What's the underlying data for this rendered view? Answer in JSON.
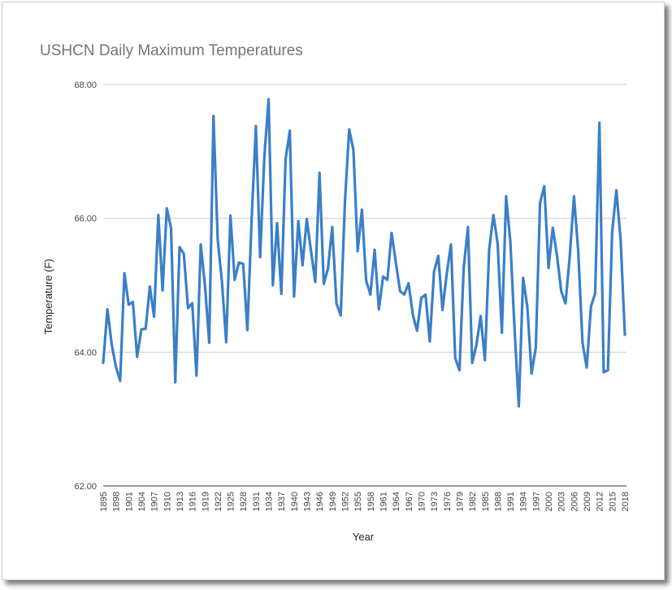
{
  "chart_data": {
    "type": "line",
    "title": "USHCN Daily Maximum Temperatures",
    "xlabel": "Year",
    "ylabel": "Temperature (F)",
    "ylim": [
      62,
      68
    ],
    "y_ticks": [
      "62.00",
      "64.00",
      "66.00",
      "68.00"
    ],
    "grid": true,
    "legend": "none",
    "x_ticks": [
      "1895",
      "1898",
      "1901",
      "1904",
      "1907",
      "1910",
      "1913",
      "1916",
      "1919",
      "1922",
      "1925",
      "1928",
      "1931",
      "1934",
      "1937",
      "1940",
      "1943",
      "1946",
      "1949",
      "1952",
      "1955",
      "1958",
      "1961",
      "1964",
      "1967",
      "1970",
      "1973",
      "1976",
      "1979",
      "1982",
      "1985",
      "1988",
      "1991",
      "1994",
      "1997",
      "2000",
      "2003",
      "2006",
      "2009",
      "2012",
      "2015",
      "2018"
    ],
    "line_color": "#3a7fc8",
    "series": [
      {
        "x": [
          1895,
          1896,
          1897,
          1898,
          1899,
          1900,
          1901,
          1902,
          1903,
          1904,
          1905,
          1906,
          1907,
          1908,
          1909,
          1910,
          1911,
          1912,
          1913,
          1914,
          1915,
          1916,
          1917,
          1918,
          1919,
          1920,
          1921,
          1922,
          1923,
          1924,
          1925,
          1926,
          1927,
          1928,
          1929,
          1930,
          1931,
          1932,
          1933,
          1934,
          1935,
          1936,
          1937,
          1938,
          1939,
          1940,
          1941,
          1942,
          1943,
          1944,
          1945,
          1946,
          1947,
          1948,
          1949,
          1950,
          1951,
          1952,
          1953,
          1954,
          1955,
          1956,
          1957,
          1958,
          1959,
          1960,
          1961,
          1962,
          1963,
          1964,
          1965,
          1966,
          1967,
          1968,
          1969,
          1970,
          1971,
          1972,
          1973,
          1974,
          1975,
          1976,
          1977,
          1978,
          1979,
          1980,
          1981,
          1982,
          1983,
          1984,
          1985,
          1986,
          1987,
          1988,
          1989,
          1990,
          1991,
          1992,
          1993,
          1994,
          1995,
          1996,
          1997,
          1998,
          1999,
          2000,
          2001,
          2002,
          2003,
          2004,
          2005,
          2006,
          2007,
          2008,
          2009,
          2010,
          2011,
          2012,
          2013,
          2014,
          2015,
          2016,
          2017,
          2018
        ],
        "values": [
          63.84,
          64.64,
          64.12,
          63.78,
          63.57,
          65.18,
          64.71,
          64.75,
          63.93,
          64.34,
          64.35,
          64.98,
          64.53,
          66.05,
          64.92,
          66.15,
          65.85,
          63.55,
          65.57,
          65.47,
          64.66,
          64.73,
          63.65,
          65.61,
          64.99,
          64.14,
          67.53,
          65.68,
          65.05,
          64.15,
          66.04,
          65.08,
          65.34,
          65.32,
          64.33,
          65.98,
          67.38,
          65.42,
          66.92,
          67.78,
          65.0,
          65.93,
          64.87,
          66.88,
          67.31,
          64.83,
          65.96,
          65.3,
          65.99,
          65.51,
          65.05,
          66.68,
          65.02,
          65.25,
          65.87,
          64.73,
          64.55,
          66.25,
          67.33,
          67.02,
          65.51,
          66.13,
          65.07,
          64.86,
          65.53,
          64.64,
          65.13,
          65.08,
          65.78,
          65.34,
          64.91,
          64.86,
          65.03,
          64.56,
          64.32,
          64.81,
          64.86,
          64.16,
          65.2,
          65.44,
          64.63,
          65.17,
          65.61,
          63.91,
          63.73,
          65.26,
          65.87,
          63.84,
          64.11,
          64.54,
          63.88,
          65.53,
          66.05,
          65.63,
          64.29,
          66.33,
          65.65,
          64.33,
          63.19,
          65.11,
          64.68,
          63.68,
          64.07,
          66.23,
          66.48,
          65.26,
          65.86,
          65.44,
          64.91,
          64.73,
          65.43,
          66.33,
          65.51,
          64.15,
          63.77,
          64.68,
          64.88,
          67.43,
          63.7,
          63.73,
          65.79,
          66.42,
          65.68,
          64.26
        ]
      }
    ]
  }
}
